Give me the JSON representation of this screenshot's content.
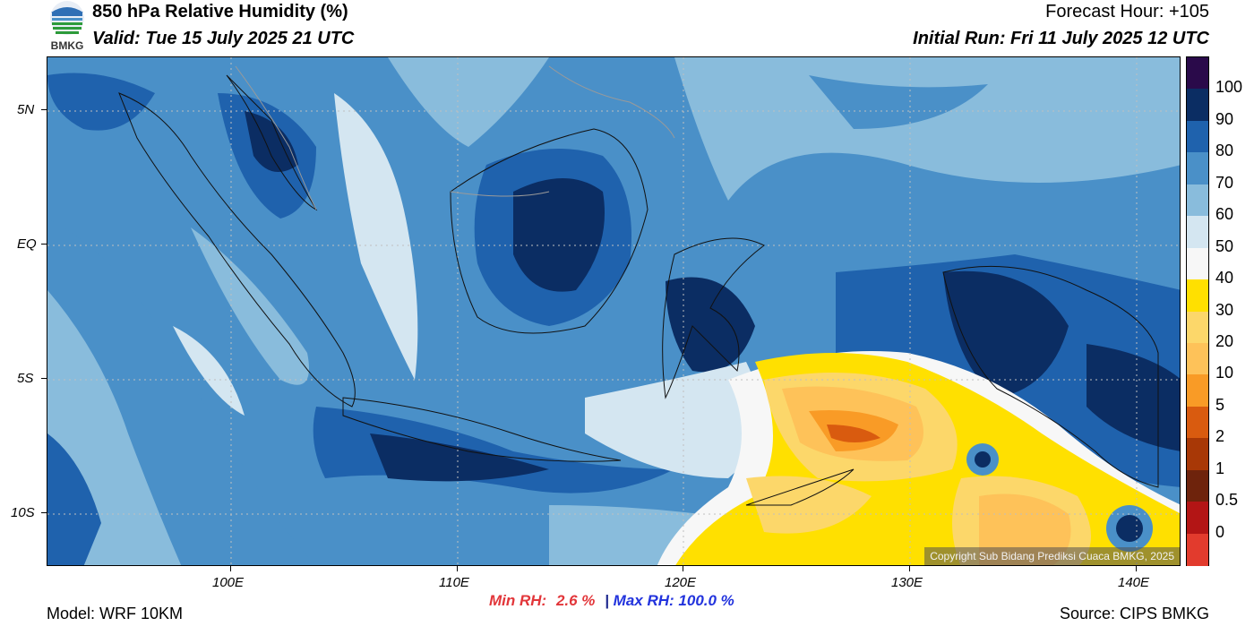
{
  "header": {
    "title": "850 hPa Relative Humidity (%)",
    "valid": "Valid: Tue 15 July 2025 21 UTC",
    "forecast_hour": "Forecast Hour: +105",
    "initial_run": "Initial Run: Fri 11 July 2025 12 UTC",
    "logo_text": "BMKG"
  },
  "map": {
    "lat_labels": [
      "5N",
      "EQ",
      "5S",
      "10S"
    ],
    "lon_labels": [
      "100E",
      "110E",
      "120E",
      "130E",
      "140E"
    ],
    "copyright": "Copyright Sub Bidang Prediksi Cuaca BMKG, 2025"
  },
  "colorbar": {
    "labels": [
      "100",
      "90",
      "80",
      "70",
      "60",
      "50",
      "40",
      "30",
      "20",
      "10",
      "5",
      "2",
      "1",
      "0.5",
      "0"
    ],
    "colors": [
      "#2a0a4a",
      "#0b2d63",
      "#1f62ad",
      "#4a90c8",
      "#89bcdc",
      "#d4e6f1",
      "#f7f7f7",
      "#ffe000",
      "#fcd76a",
      "#fec259",
      "#f99b26",
      "#d95b0f",
      "#a83806",
      "#6e230c",
      "#b31515",
      "#e23b2d"
    ]
  },
  "stats": {
    "min_label": "Min RH:",
    "min_value": "2.6 %",
    "separator": "|",
    "max_label": "Max RH:",
    "max_value": "100.0 %"
  },
  "footer": {
    "model": "Model: WRF 10KM",
    "source": "Source: CIPS BMKG"
  }
}
